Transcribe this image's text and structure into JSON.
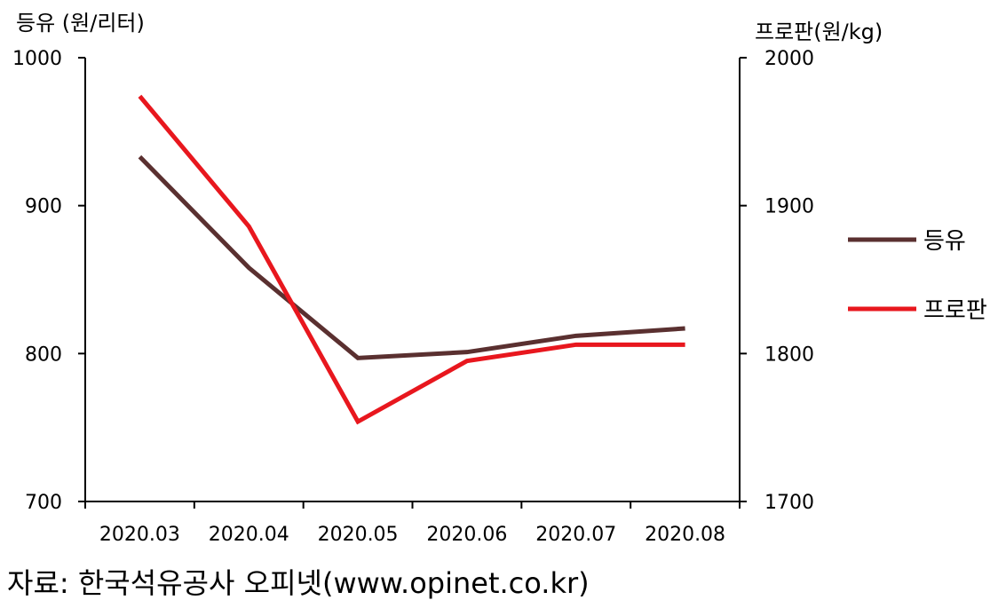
{
  "chart_data": {
    "type": "line",
    "categories": [
      "2020.03",
      "2020.04",
      "2020.05",
      "2020.06",
      "2020.07",
      "2020.08"
    ],
    "series": [
      {
        "name": "등유",
        "axis": "left",
        "color": "#5a3030",
        "values": [
          933,
          858,
          797,
          801,
          812,
          817
        ]
      },
      {
        "name": "프로판",
        "axis": "right",
        "color": "#e8171e",
        "values": [
          1974,
          1886,
          1754,
          1795,
          1806,
          1806
        ]
      }
    ],
    "y_left": {
      "label": "등유 (원/리터)",
      "ylim": [
        700,
        1000
      ],
      "ticks": [
        700,
        800,
        900,
        1000
      ]
    },
    "y_right": {
      "label": "프로판(원/kg)",
      "ylim": [
        1700,
        2000
      ],
      "ticks": [
        1700,
        1800,
        1900,
        2000
      ]
    },
    "grid": false,
    "legend_position": "right"
  },
  "source_text": "자료: 한국석유공사 오피넷(www.opinet.co.kr)"
}
